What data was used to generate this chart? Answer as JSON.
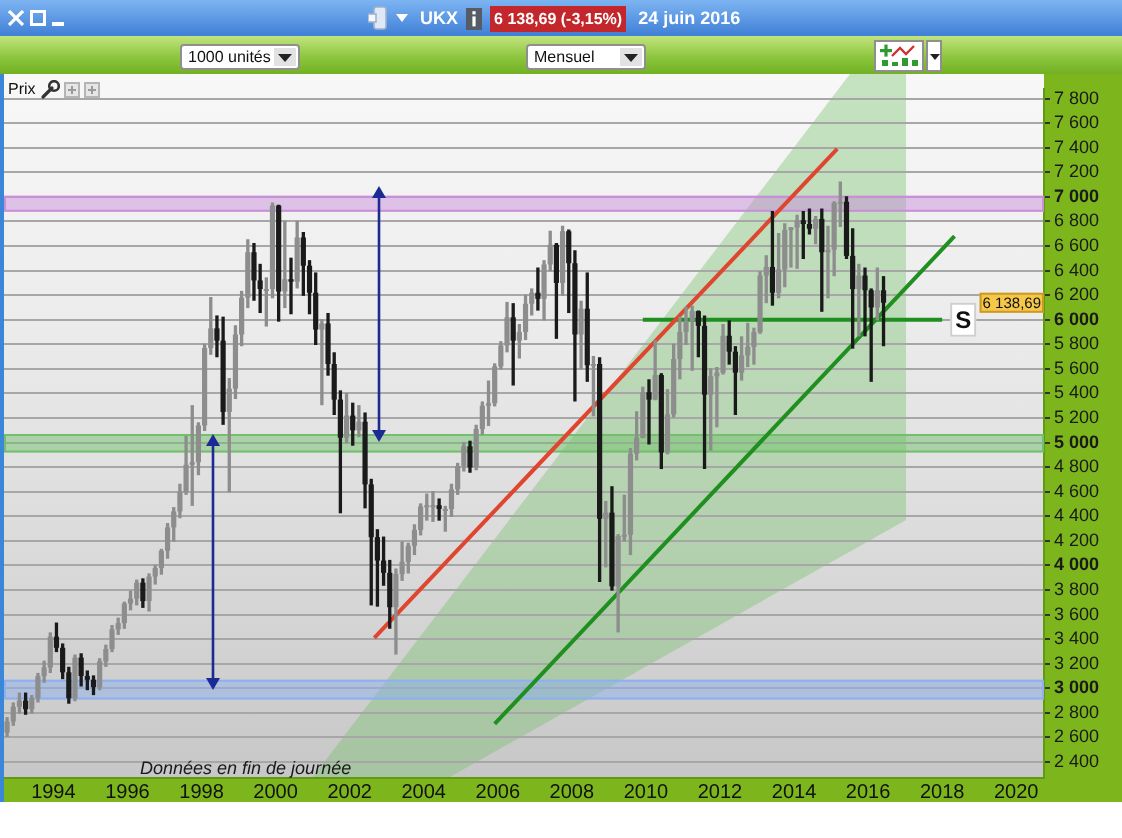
{
  "chart_data": {
    "type": "candlestick",
    "title": "UKX",
    "subtitle": "24 juin 2016",
    "annotations": [
      "6 138,69 (-3,15%)",
      "1000 unités",
      "Mensuel",
      "Prix",
      "Données en fin de journée",
      {
        "text": "6 138,69",
        "y": 6138.69
      }
    ],
    "x": [
      "1992-10",
      "1992-12",
      "1993-02",
      "1993-04",
      "1993-06",
      "1993-08",
      "1993-10",
      "1993-12",
      "1994-02",
      "1994-04",
      "1994-06",
      "1994-08",
      "1994-10",
      "1994-12",
      "1995-02",
      "1995-04",
      "1995-06",
      "1995-08",
      "1995-10",
      "1995-12",
      "1996-02",
      "1996-04",
      "1996-06",
      "1996-08",
      "1996-10",
      "1996-12",
      "1997-02",
      "1997-04",
      "1997-06",
      "1997-08",
      "1997-10",
      "1997-12",
      "1998-02",
      "1998-04",
      "1998-06",
      "1998-08",
      "1998-10",
      "1998-12",
      "1999-02",
      "1999-04",
      "1999-06",
      "1999-08",
      "1999-10",
      "1999-12",
      "2000-02",
      "2000-04",
      "2000-06",
      "2000-08",
      "2000-10",
      "2000-12",
      "2001-02",
      "2001-04",
      "2001-06",
      "2001-08",
      "2001-10",
      "2001-12",
      "2002-02",
      "2002-04",
      "2002-06",
      "2002-08",
      "2002-10",
      "2002-12",
      "2003-02",
      "2003-04",
      "2003-06",
      "2003-08",
      "2003-10",
      "2003-12",
      "2004-02",
      "2004-04",
      "2004-06",
      "2004-08",
      "2004-10",
      "2004-12",
      "2005-02",
      "2005-04",
      "2005-06",
      "2005-08",
      "2005-10",
      "2005-12",
      "2006-02",
      "2006-04",
      "2006-06",
      "2006-08",
      "2006-10",
      "2006-12",
      "2007-02",
      "2007-04",
      "2007-06",
      "2007-08",
      "2007-10",
      "2007-12",
      "2008-02",
      "2008-04",
      "2008-06",
      "2008-08",
      "2008-10",
      "2008-12",
      "2009-02",
      "2009-04",
      "2009-06",
      "2009-08",
      "2009-10",
      "2009-12",
      "2010-02",
      "2010-04",
      "2010-06",
      "2010-08",
      "2010-10",
      "2010-12",
      "2011-02",
      "2011-04",
      "2011-06",
      "2011-08",
      "2011-10",
      "2011-12",
      "2012-02",
      "2012-04",
      "2012-06",
      "2012-08",
      "2012-10",
      "2012-12",
      "2013-02",
      "2013-04",
      "2013-06",
      "2013-08",
      "2013-10",
      "2013-12",
      "2014-02",
      "2014-04",
      "2014-06",
      "2014-08",
      "2014-10",
      "2014-12",
      "2015-02",
      "2015-04",
      "2015-06",
      "2015-08",
      "2015-10",
      "2015-12",
      "2016-02",
      "2016-04",
      "2016-06"
    ],
    "ohlc": [
      [
        2640,
        2760,
        2610,
        2730
      ],
      [
        2730,
        2880,
        2700,
        2850
      ],
      [
        2850,
        2960,
        2800,
        2900
      ],
      [
        2900,
        2960,
        2790,
        2830
      ],
      [
        2830,
        2940,
        2800,
        2920
      ],
      [
        2920,
        3120,
        2890,
        3100
      ],
      [
        3100,
        3220,
        3050,
        3170
      ],
      [
        3170,
        3450,
        3130,
        3420
      ],
      [
        3420,
        3530,
        3300,
        3330
      ],
      [
        3330,
        3360,
        3080,
        3130
      ],
      [
        3130,
        3170,
        2880,
        2920
      ],
      [
        2920,
        3270,
        2900,
        3250
      ],
      [
        3250,
        3280,
        3020,
        3100
      ],
      [
        3100,
        3140,
        2990,
        3070
      ],
      [
        3070,
        3100,
        2950,
        3010
      ],
      [
        3010,
        3240,
        2990,
        3220
      ],
      [
        3220,
        3350,
        3180,
        3320
      ],
      [
        3320,
        3510,
        3300,
        3480
      ],
      [
        3480,
        3570,
        3440,
        3530
      ],
      [
        3530,
        3700,
        3490,
        3690
      ],
      [
        3690,
        3790,
        3640,
        3730
      ],
      [
        3730,
        3880,
        3680,
        3860
      ],
      [
        3860,
        3890,
        3660,
        3710
      ],
      [
        3710,
        3930,
        3630,
        3910
      ],
      [
        3910,
        4000,
        3850,
        3980
      ],
      [
        3980,
        4130,
        3930,
        4120
      ],
      [
        4120,
        4340,
        4060,
        4310
      ],
      [
        4310,
        4470,
        4200,
        4440
      ],
      [
        4440,
        4660,
        4390,
        4600
      ],
      [
        4600,
        5050,
        4580,
        4820
      ],
      [
        4820,
        5300,
        4490,
        4840
      ],
      [
        4840,
        5160,
        4740,
        5140
      ],
      [
        5140,
        5800,
        5100,
        5770
      ],
      [
        5770,
        6180,
        5720,
        5930
      ],
      [
        5930,
        6030,
        5700,
        5830
      ],
      [
        5830,
        6020,
        5150,
        5250
      ],
      [
        5250,
        5520,
        4600,
        5440
      ],
      [
        5440,
        5950,
        5360,
        5880
      ],
      [
        5880,
        6230,
        5790,
        6180
      ],
      [
        6180,
        6650,
        6100,
        6550
      ],
      [
        6550,
        6620,
        6160,
        6320
      ],
      [
        6320,
        6450,
        6060,
        6250
      ],
      [
        6250,
        6340,
        5950,
        6250
      ],
      [
        6250,
        6950,
        6180,
        6930
      ],
      [
        6930,
        6930,
        5990,
        6230
      ],
      [
        6230,
        6800,
        6100,
        6330
      ],
      [
        6330,
        6500,
        6050,
        6310
      ],
      [
        6310,
        6800,
        6260,
        6670
      ],
      [
        6670,
        6710,
        6200,
        6440
      ],
      [
        6440,
        6480,
        6050,
        6220
      ],
      [
        6220,
        6380,
        5800,
        5920
      ],
      [
        5920,
        6000,
        5310,
        5970
      ],
      [
        5970,
        6050,
        5550,
        5640
      ],
      [
        5640,
        5730,
        5230,
        5350
      ],
      [
        5350,
        5420,
        4430,
        5040
      ],
      [
        5040,
        5400,
        5000,
        5220
      ],
      [
        5220,
        5320,
        4980,
        5100
      ],
      [
        5100,
        5300,
        5050,
        5170
      ],
      [
        5170,
        5240,
        4470,
        4660
      ],
      [
        4660,
        4700,
        3680,
        4230
      ],
      [
        4230,
        4290,
        3670,
        4040
      ],
      [
        4040,
        4230,
        3840,
        3940
      ],
      [
        3940,
        4040,
        3490,
        3660
      ],
      [
        3660,
        3970,
        3280,
        3930
      ],
      [
        3930,
        4190,
        3880,
        4030
      ],
      [
        4030,
        4180,
        3940,
        4160
      ],
      [
        4160,
        4330,
        4090,
        4290
      ],
      [
        4290,
        4500,
        4250,
        4480
      ],
      [
        4480,
        4580,
        4370,
        4490
      ],
      [
        4490,
        4600,
        4360,
        4490
      ],
      [
        4490,
        4540,
        4370,
        4460
      ],
      [
        4460,
        4480,
        4280,
        4460
      ],
      [
        4460,
        4660,
        4400,
        4620
      ],
      [
        4620,
        4830,
        4580,
        4810
      ],
      [
        4810,
        5000,
        4770,
        4970
      ],
      [
        4970,
        5010,
        4760,
        4800
      ],
      [
        4800,
        5140,
        4780,
        5110
      ],
      [
        5110,
        5330,
        5070,
        5300
      ],
      [
        5300,
        5500,
        5140,
        5320
      ],
      [
        5320,
        5640,
        5300,
        5620
      ],
      [
        5620,
        5820,
        5600,
        5790
      ],
      [
        5790,
        6140,
        5740,
        6020
      ],
      [
        6020,
        6130,
        5470,
        5830
      ],
      [
        5830,
        5960,
        5690,
        5900
      ],
      [
        5900,
        6200,
        5840,
        6130
      ],
      [
        6130,
        6250,
        6040,
        6220
      ],
      [
        6220,
        6420,
        6080,
        6170
      ],
      [
        6170,
        6480,
        6000,
        6450
      ],
      [
        6450,
        6720,
        6400,
        6610
      ],
      [
        6610,
        6620,
        5850,
        6300
      ],
      [
        6300,
        6760,
        6200,
        6720
      ],
      [
        6720,
        6730,
        6060,
        6460
      ],
      [
        6460,
        6560,
        5340,
        5880
      ],
      [
        5880,
        6150,
        5600,
        6090
      ],
      [
        6090,
        6380,
        5500,
        5630
      ],
      [
        5630,
        5700,
        5220,
        5640
      ],
      [
        5640,
        5690,
        3870,
        4380
      ],
      [
        4380,
        4520,
        3990,
        4430
      ],
      [
        4430,
        4640,
        3800,
        3830
      ],
      [
        3830,
        4250,
        3460,
        4240
      ],
      [
        4240,
        4570,
        4200,
        4250
      ],
      [
        4250,
        4950,
        4090,
        4910
      ],
      [
        4910,
        5250,
        4860,
        5040
      ],
      [
        5040,
        5450,
        5040,
        5410
      ],
      [
        5410,
        5510,
        4990,
        5350
      ],
      [
        5350,
        5830,
        5350,
        5550
      ],
      [
        5550,
        5560,
        4790,
        4920
      ],
      [
        4920,
        5430,
        4910,
        5230
      ],
      [
        5230,
        5800,
        5210,
        5680
      ],
      [
        5680,
        6020,
        5520,
        5900
      ],
      [
        5900,
        6100,
        5800,
        5990
      ],
      [
        5990,
        6110,
        5590,
        6070
      ],
      [
        6070,
        6070,
        5700,
        5950
      ],
      [
        5950,
        6030,
        4790,
        5390
      ],
      [
        5390,
        5600,
        4940,
        5540
      ],
      [
        5540,
        5610,
        5130,
        5570
      ],
      [
        5570,
        5960,
        5560,
        5870
      ],
      [
        5870,
        5990,
        5640,
        5740
      ],
      [
        5740,
        5780,
        5230,
        5570
      ],
      [
        5570,
        5860,
        5510,
        5710
      ],
      [
        5710,
        5970,
        5620,
        5780
      ],
      [
        5780,
        5930,
        5640,
        5900
      ],
      [
        5900,
        6390,
        5890,
        6360
      ],
      [
        6360,
        6520,
        6140,
        6430
      ],
      [
        6430,
        6880,
        6120,
        6220
      ],
      [
        6220,
        6700,
        6180,
        6410
      ],
      [
        6410,
        6780,
        6270,
        6730
      ],
      [
        6730,
        6750,
        6430,
        6750
      ],
      [
        6750,
        6850,
        6420,
        6810
      ],
      [
        6810,
        6880,
        6500,
        6780
      ],
      [
        6780,
        6900,
        6700,
        6740
      ],
      [
        6740,
        6840,
        6620,
        6820
      ],
      [
        6820,
        6900,
        6070,
        6550
      ],
      [
        6550,
        6760,
        6180,
        6570
      ],
      [
        6570,
        6960,
        6360,
        6950
      ],
      [
        6950,
        7120,
        6760,
        6960
      ],
      [
        6960,
        7000,
        6500,
        6520
      ],
      [
        6520,
        6740,
        5770,
        6250
      ],
      [
        6250,
        6450,
        5870,
        6360
      ],
      [
        6360,
        6420,
        5870,
        6240
      ],
      [
        6240,
        6250,
        5500,
        6100
      ],
      [
        6100,
        6420,
        6000,
        6240
      ],
      [
        6240,
        6350,
        5790,
        6138.69
      ]
    ],
    "colors": [
      "#8d8d8d",
      "#8d8d8d",
      "#8d8d8d",
      "#1a1a1a",
      "#8d8d8d",
      "#8d8d8d",
      "#8d8d8d",
      "#8d8d8d",
      "#1a1a1a",
      "#1a1a1a",
      "#1a1a1a",
      "#8d8d8d",
      "#1a1a1a",
      "#1a1a1a",
      "#1a1a1a",
      "#8d8d8d",
      "#8d8d8d",
      "#8d8d8d",
      "#8d8d8d",
      "#8d8d8d",
      "#8d8d8d",
      "#8d8d8d",
      "#1a1a1a",
      "#8d8d8d",
      "#8d8d8d",
      "#8d8d8d",
      "#8d8d8d",
      "#8d8d8d",
      "#8d8d8d",
      "#8d8d8d",
      "#8d8d8d",
      "#8d8d8d",
      "#8d8d8d",
      "#8d8d8d",
      "#1a1a1a",
      "#1a1a1a",
      "#8d8d8d",
      "#8d8d8d",
      "#8d8d8d",
      "#8d8d8d",
      "#1a1a1a",
      "#1a1a1a",
      "#8d8d8d",
      "#8d8d8d",
      "#1a1a1a",
      "#8d8d8d",
      "#1a1a1a",
      "#8d8d8d",
      "#1a1a1a",
      "#1a1a1a",
      "#1a1a1a",
      "#8d8d8d",
      "#1a1a1a",
      "#1a1a1a",
      "#1a1a1a",
      "#8d8d8d",
      "#1a1a1a",
      "#8d8d8d",
      "#1a1a1a",
      "#1a1a1a",
      "#1a1a1a",
      "#1a1a1a",
      "#1a1a1a",
      "#8d8d8d",
      "#8d8d8d",
      "#8d8d8d",
      "#8d8d8d",
      "#8d8d8d",
      "#8d8d8d",
      "#8d8d8d",
      "#1a1a1a",
      "#8d8d8d",
      "#8d8d8d",
      "#8d8d8d",
      "#8d8d8d",
      "#1a1a1a",
      "#8d8d8d",
      "#8d8d8d",
      "#8d8d8d",
      "#8d8d8d",
      "#8d8d8d",
      "#8d8d8d",
      "#1a1a1a",
      "#8d8d8d",
      "#8d8d8d",
      "#8d8d8d",
      "#1a1a1a",
      "#8d8d8d",
      "#8d8d8d",
      "#1a1a1a",
      "#8d8d8d",
      "#1a1a1a",
      "#1a1a1a",
      "#8d8d8d",
      "#1a1a1a",
      "#8d8d8d",
      "#1a1a1a",
      "#8d8d8d",
      "#1a1a1a",
      "#8d8d8d",
      "#8d8d8d",
      "#8d8d8d",
      "#8d8d8d",
      "#8d8d8d",
      "#1a1a1a",
      "#8d8d8d",
      "#1a1a1a",
      "#8d8d8d",
      "#8d8d8d",
      "#8d8d8d",
      "#8d8d8d",
      "#8d8d8d",
      "#1a1a1a",
      "#1a1a1a",
      "#8d8d8d",
      "#8d8d8d",
      "#8d8d8d",
      "#1a1a1a",
      "#1a1a1a",
      "#8d8d8d",
      "#8d8d8d",
      "#8d8d8d",
      "#8d8d8d",
      "#8d8d8d",
      "#1a1a1a",
      "#8d8d8d",
      "#8d8d8d",
      "#8d8d8d",
      "#8d8d8d",
      "#1a1a1a",
      "#1a1a1a",
      "#8d8d8d",
      "#1a1a1a",
      "#8d8d8d",
      "#8d8d8d",
      "#8d8d8d",
      "#1a1a1a",
      "#1a1a1a",
      "#8d8d8d",
      "#1a1a1a",
      "#1a1a1a",
      "#8d8d8d",
      "#1a1a1a"
    ],
    "series": [
      {
        "type": "line",
        "x": [
          "2002-09",
          "2015-03"
        ],
        "values": [
          3410,
          7390
        ],
        "color": "#e0452f"
      },
      {
        "type": "line",
        "x": [
          "2005-12",
          "2018-05"
        ],
        "values": [
          2710,
          6680
        ],
        "color": "#1f8f1f"
      },
      {
        "type": "line",
        "name": "S",
        "x": [
          "2009-12",
          "2018-01"
        ],
        "values": [
          6000,
          6000
        ],
        "color": "#1f8f1f"
      }
    ],
    "bands": [
      {
        "axis": "y",
        "from": 6880,
        "to": 7010,
        "color": "#c98fd9"
      },
      {
        "axis": "y",
        "from": 4920,
        "to": 5070,
        "color": "#74bf6e"
      },
      {
        "axis": "y",
        "from": 2910,
        "to": 3070,
        "color": "#8fb0ee"
      }
    ],
    "xlim": [
      "1992-09",
      "2020-10"
    ],
    "xticks": [
      "1994",
      "1996",
      "1998",
      "2000",
      "2002",
      "2004",
      "2006",
      "2008",
      "2010",
      "2012",
      "2014",
      "2016",
      "2018",
      "2020"
    ],
    "ylim": [
      2270,
      7880
    ],
    "yticks": [
      {
        "value": 2400,
        "label": "2 400"
      },
      {
        "value": 2600,
        "label": "2 600"
      },
      {
        "value": 2800,
        "label": "2 800"
      },
      {
        "value": 3000,
        "label": "3 000"
      },
      {
        "value": 3200,
        "label": "3 200"
      },
      {
        "value": 3400,
        "label": "3 400"
      },
      {
        "value": 3600,
        "label": "3 600"
      },
      {
        "value": 3800,
        "label": "3 800"
      },
      {
        "value": 4000,
        "label": "4 000"
      },
      {
        "value": 4200,
        "label": "4 200"
      },
      {
        "value": 4400,
        "label": "4 400"
      },
      {
        "value": 4600,
        "label": "4 600"
      },
      {
        "value": 4800,
        "label": "4 800"
      },
      {
        "value": 5000,
        "label": "5 000"
      },
      {
        "value": 5200,
        "label": "5 200"
      },
      {
        "value": 5400,
        "label": "5 400"
      },
      {
        "value": 5600,
        "label": "5 600"
      },
      {
        "value": 5800,
        "label": "5 800"
      },
      {
        "value": 6000,
        "label": "6 000"
      },
      {
        "value": 6200,
        "label": "6 200"
      },
      {
        "value": 6400,
        "label": "6 400"
      },
      {
        "value": 6600,
        "label": "6 600"
      },
      {
        "value": 6800,
        "label": "6 800"
      },
      {
        "value": 7000,
        "label": "7 000"
      },
      {
        "value": 7200,
        "label": "7 200"
      },
      {
        "value": 7400,
        "label": "7 400"
      },
      {
        "value": 7600,
        "label": "7 600"
      },
      {
        "value": 7800,
        "label": "7 800"
      }
    ],
    "grid": "y"
  }
}
